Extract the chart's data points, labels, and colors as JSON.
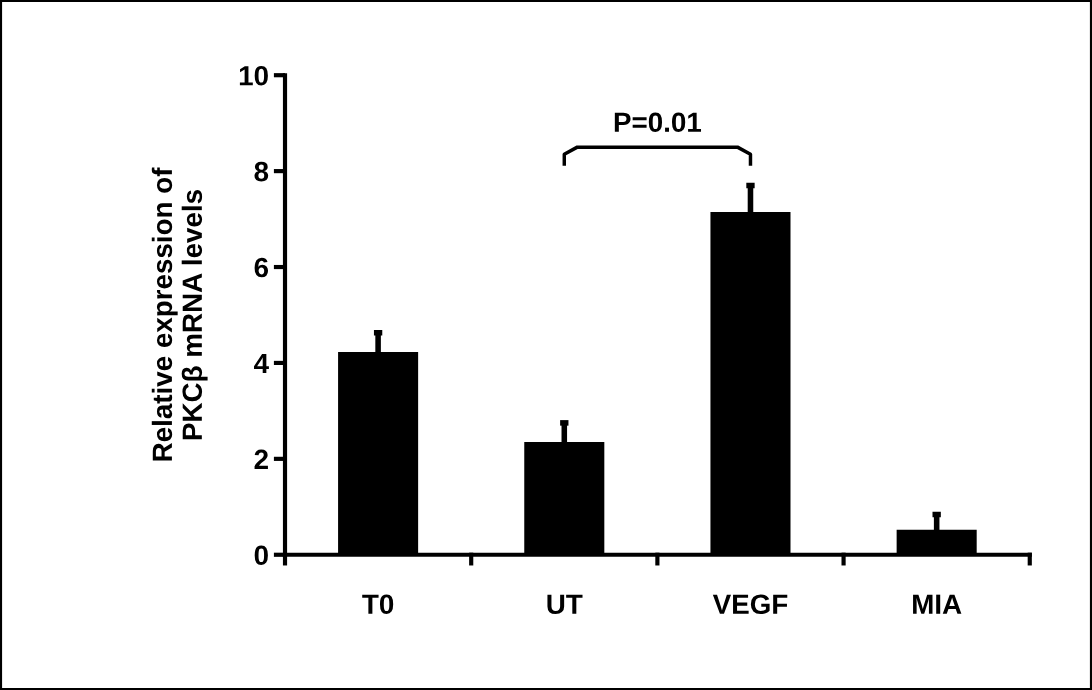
{
  "chart_data": {
    "type": "bar",
    "ylabel": "Relative expression of\nPKCβ mRNA levels",
    "categories": [
      "T0",
      "UT",
      "VEGF",
      "MIA"
    ],
    "values": [
      4.23,
      2.35,
      7.15,
      0.52
    ],
    "errors": [
      0.4,
      0.4,
      0.55,
      0.32
    ],
    "color": "#000000",
    "ylim": [
      0,
      10
    ],
    "yticks": [
      0,
      2,
      4,
      6,
      8,
      10
    ],
    "grid": false,
    "legend": false,
    "annotations": [
      "P=0.01"
    ]
  }
}
